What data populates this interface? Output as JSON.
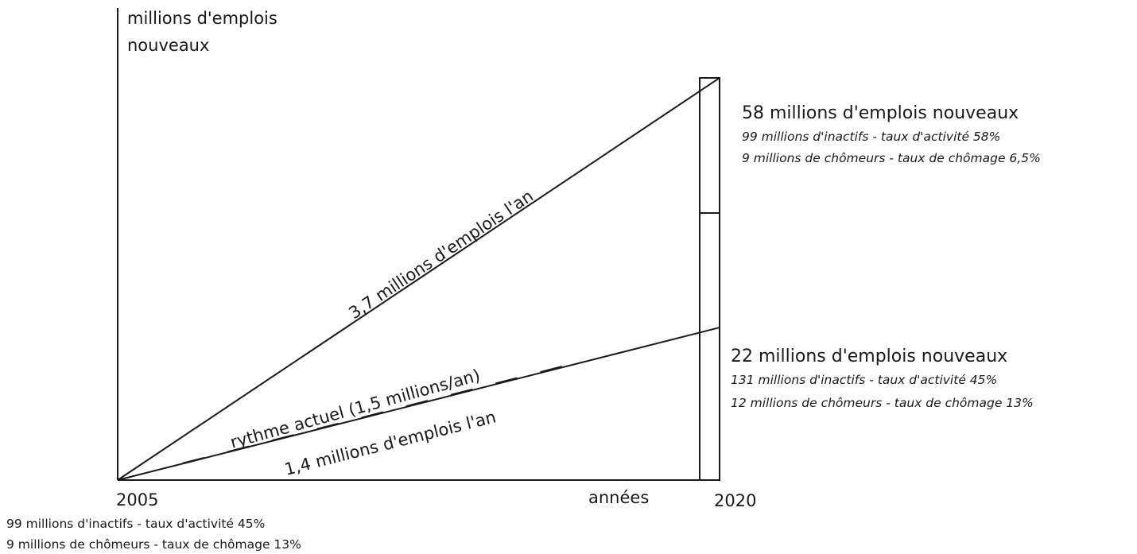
{
  "chart_data": {
    "type": "line",
    "ylabel": [
      "millions d'emplois",
      "nouveaux"
    ],
    "xlabel": "années",
    "x_start": "2005",
    "x_end": "2020",
    "x": [
      2005,
      2020
    ],
    "series": [
      {
        "label": "3,7 millions d'emplois l'an",
        "values": [
          0,
          58
        ],
        "style": "solid"
      },
      {
        "label": "1,4 millions d'emplois l'an",
        "values": [
          0,
          22
        ],
        "style": "solid"
      },
      {
        "label": "rythme actuel (1,5 millions/an)",
        "values": [
          0,
          22.5
        ],
        "style": "dashed"
      }
    ],
    "bar_2020": {
      "segments": [
        22,
        36
      ]
    },
    "annotations": {
      "high": {
        "title": "58 millions d'emplois nouveaux",
        "line1": "99 millions d'inactifs - taux d'activité 58%",
        "line2": "9 millions de chômeurs - taux de chômage 6,5%"
      },
      "low": {
        "title": "22 millions d'emplois nouveaux",
        "line1": "131 millions d'inactifs - taux d'activité 45%",
        "line2": "12 millions de chômeurs - taux de chômage 13%"
      },
      "base": {
        "line1": "99 millions d'inactifs - taux d'activité 45%",
        "line2": "9 millions de chômeurs - taux de chômage 13%"
      }
    },
    "ylim": [
      0,
      60
    ],
    "grid": false,
    "legend": "none"
  }
}
